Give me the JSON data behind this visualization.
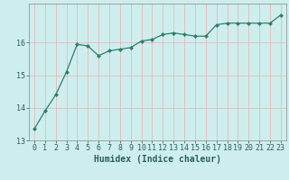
{
  "x": [
    0,
    1,
    2,
    3,
    4,
    5,
    6,
    7,
    8,
    9,
    10,
    11,
    12,
    13,
    14,
    15,
    16,
    17,
    18,
    19,
    20,
    21,
    22,
    23
  ],
  "y": [
    13.35,
    13.9,
    14.4,
    15.1,
    15.95,
    15.9,
    15.6,
    15.75,
    15.8,
    15.85,
    16.05,
    16.1,
    16.25,
    16.3,
    16.25,
    16.2,
    16.2,
    16.55,
    16.6,
    16.6,
    16.6,
    16.6,
    16.6,
    16.85
  ],
  "line_color": "#2e7d6e",
  "marker": "D",
  "marker_size": 2.0,
  "linewidth": 0.9,
  "background_color": "#ceeeed",
  "grid_color": "#e8b8b8",
  "xlabel": "Humidex (Indice chaleur)",
  "xlabel_fontsize": 7,
  "xtick_labels": [
    "0",
    "1",
    "2",
    "3",
    "4",
    "5",
    "6",
    "7",
    "8",
    "9",
    "10",
    "11",
    "12",
    "13",
    "14",
    "15",
    "16",
    "17",
    "18",
    "19",
    "20",
    "21",
    "22",
    "23"
  ],
  "ytick_labels": [
    "13",
    "14",
    "15",
    "16"
  ],
  "yticks": [
    13,
    14,
    15,
    16
  ],
  "xlim": [
    -0.5,
    23.5
  ],
  "ylim": [
    13.0,
    17.2
  ],
  "tick_fontsize": 6.0,
  "tick_color": "#2e5e5e"
}
